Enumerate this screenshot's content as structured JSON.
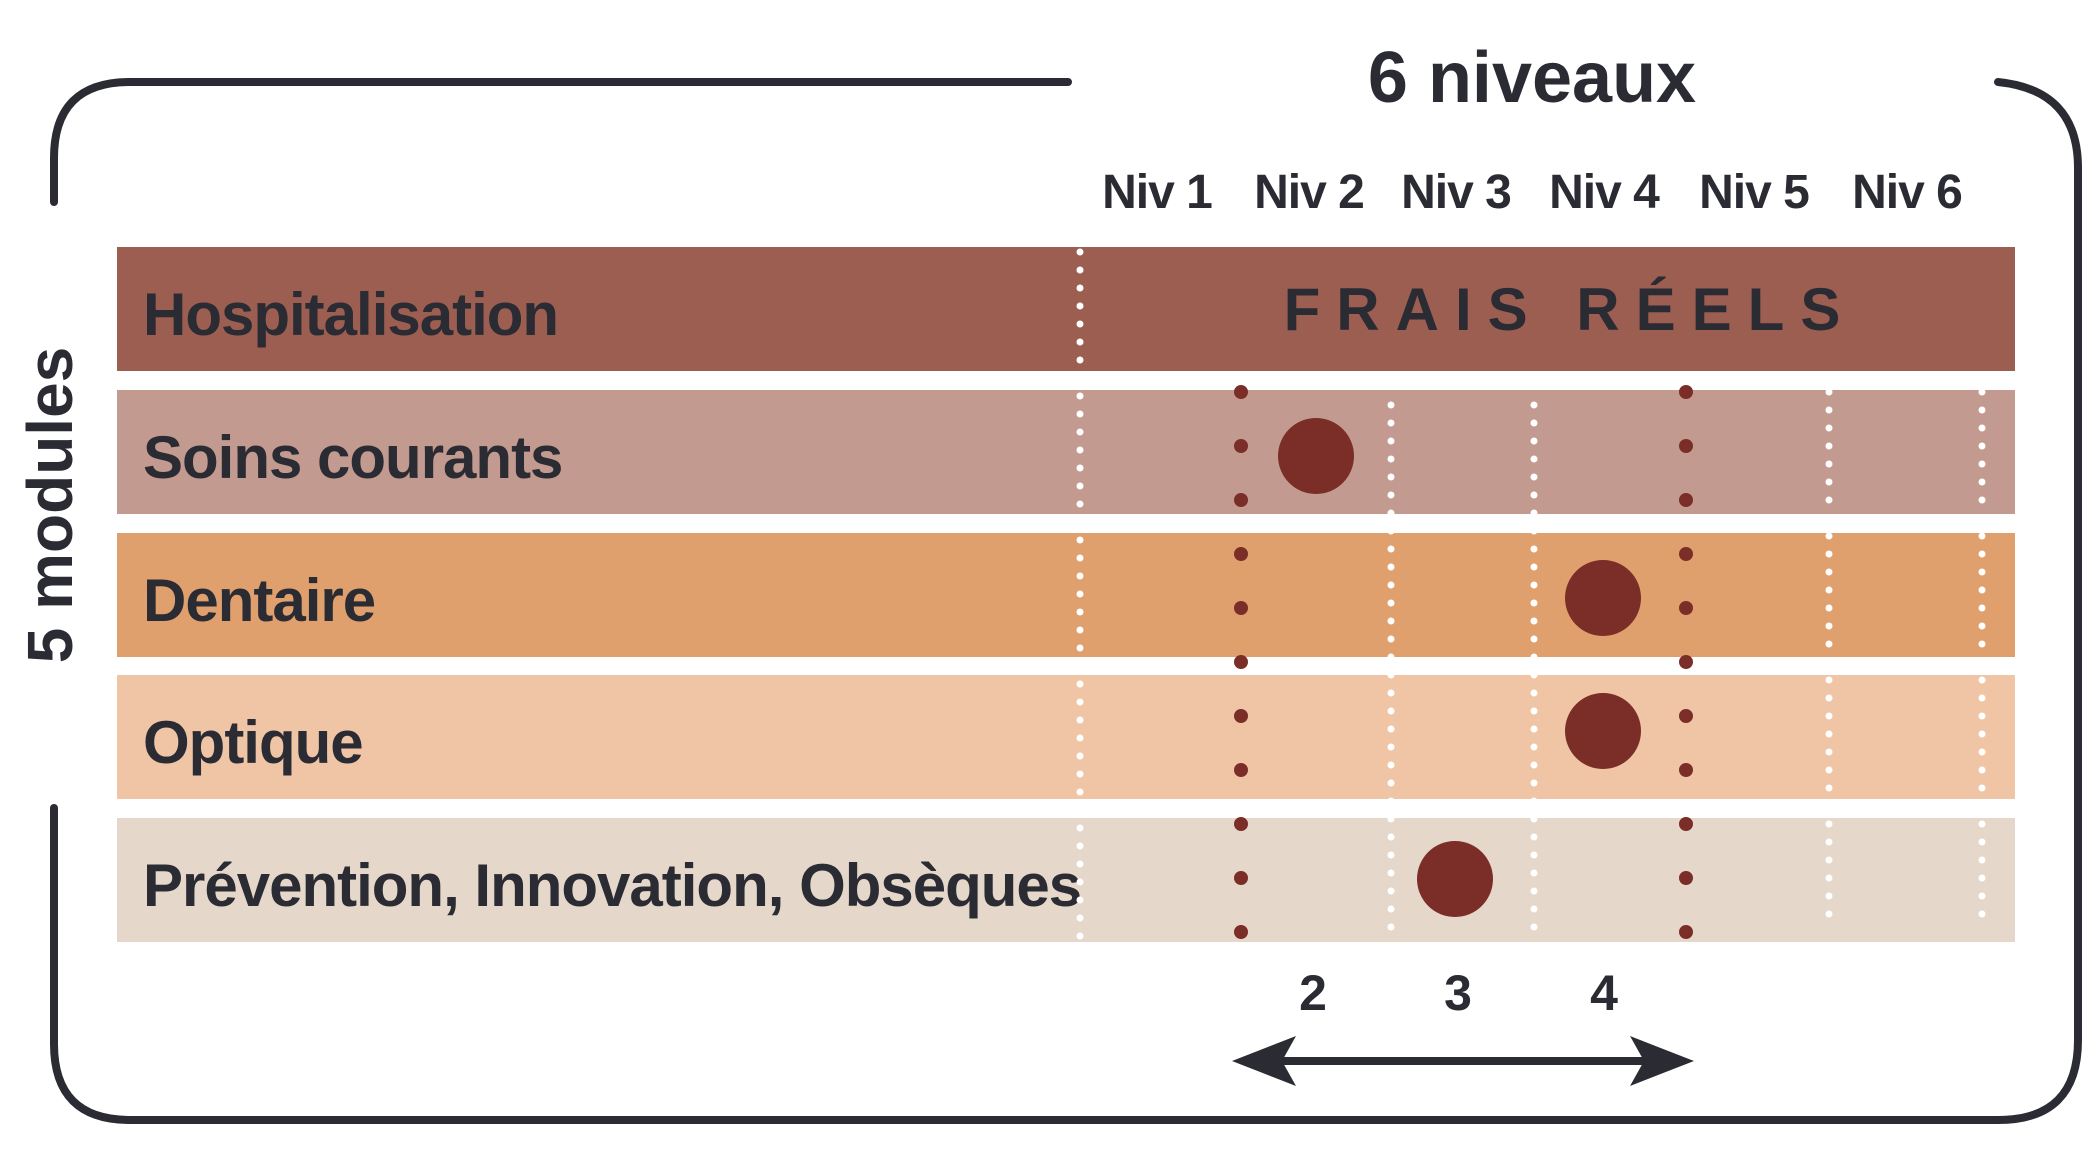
{
  "header": {
    "title": "6 niveaux"
  },
  "side_label": "5 modules",
  "levels": [
    "Niv 1",
    "Niv 2",
    "Niv 3",
    "Niv 4",
    "Niv 5",
    "Niv 6"
  ],
  "modules": [
    {
      "label": "Hospitalisation",
      "color": "#9b5e51",
      "note": "FRAIS RÉELS",
      "level": null
    },
    {
      "label": "Soins courants",
      "color": "#c39a8f",
      "level": 2
    },
    {
      "label": "Dentaire",
      "color": "#e0a06d",
      "level": 4
    },
    {
      "label": "Optique",
      "color": "#efc5a5",
      "level": 4
    },
    {
      "label": "Prévention, Innovation, Obsèques",
      "color": "#e5d8ca",
      "level": 3
    }
  ],
  "range_numbers": [
    "2",
    "3",
    "4"
  ],
  "colors": {
    "marker": "#7b2d28",
    "separator_dots": "#7b2d28",
    "text": "#2b2b33",
    "frame": "#2b2b33"
  }
}
